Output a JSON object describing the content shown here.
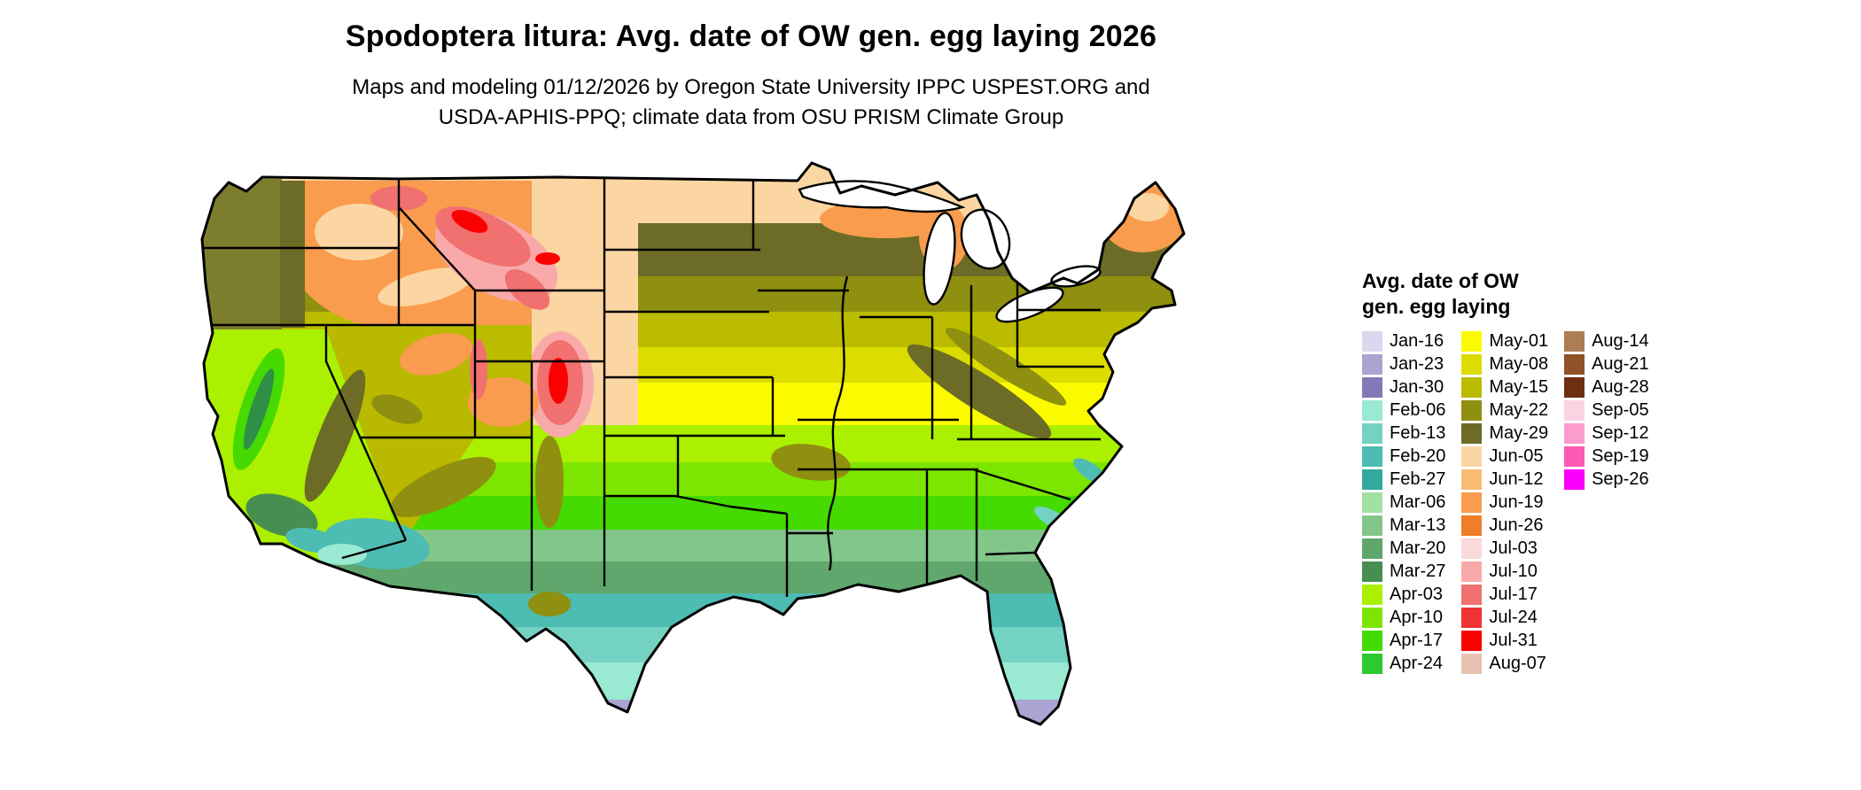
{
  "page": {
    "title": "Spodoptera litura: Avg. date of OW gen. egg laying 2026",
    "subtitle_line1": "Maps and modeling 01/12/2026 by Oregon State University IPPC USPEST.ORG and",
    "subtitle_line2": "USDA-APHIS-PPQ; climate data from OSU PRISM Climate Group"
  },
  "map": {
    "alt": "Choropleth map of the continental United States colored by average date of overwintered generation egg laying"
  },
  "legend": {
    "title_line1": "Avg. date of OW",
    "title_line2": "gen. egg laying",
    "columns": [
      {
        "items": [
          {
            "label": "Jan-16",
            "color": "#dcd6ee"
          },
          {
            "label": "Jan-23",
            "color": "#aba3d2"
          },
          {
            "label": "Jan-30",
            "color": "#8478b6"
          },
          {
            "label": "Feb-06",
            "color": "#9ae9d2"
          },
          {
            "label": "Feb-13",
            "color": "#74d2c2"
          },
          {
            "label": "Feb-20",
            "color": "#4dbcb2"
          },
          {
            "label": "Feb-27",
            "color": "#35a89e"
          },
          {
            "label": "Mar-06",
            "color": "#a2e0a4"
          },
          {
            "label": "Mar-13",
            "color": "#82c689"
          },
          {
            "label": "Mar-20",
            "color": "#5fa76d"
          },
          {
            "label": "Mar-27",
            "color": "#478e51"
          },
          {
            "label": "Apr-03",
            "color": "#aaf000"
          },
          {
            "label": "Apr-10",
            "color": "#7ce600"
          },
          {
            "label": "Apr-17",
            "color": "#45da00"
          },
          {
            "label": "Apr-24",
            "color": "#2dc930"
          }
        ]
      },
      {
        "items": [
          {
            "label": "May-01",
            "color": "#fbfb00"
          },
          {
            "label": "May-08",
            "color": "#dcdc00"
          },
          {
            "label": "May-15",
            "color": "#bbbb00"
          },
          {
            "label": "May-22",
            "color": "#8f8f10"
          },
          {
            "label": "May-29",
            "color": "#6c6c26"
          },
          {
            "label": "Jun-05",
            "color": "#fbd6a2"
          },
          {
            "label": "Jun-12",
            "color": "#fabb75"
          },
          {
            "label": "Jun-19",
            "color": "#f99c4e"
          },
          {
            "label": "Jun-26",
            "color": "#f07d28"
          },
          {
            "label": "Jul-03",
            "color": "#fadada"
          },
          {
            "label": "Jul-10",
            "color": "#f9a9a9"
          },
          {
            "label": "Jul-17",
            "color": "#f17070"
          },
          {
            "label": "Jul-24",
            "color": "#ee3434"
          },
          {
            "label": "Jul-31",
            "color": "#fb0000"
          },
          {
            "label": "Aug-07",
            "color": "#e7c2b2"
          }
        ]
      },
      {
        "items": [
          {
            "label": "Aug-14",
            "color": "#ad7d55"
          },
          {
            "label": "Aug-21",
            "color": "#8f5229"
          },
          {
            "label": "Aug-28",
            "color": "#6e2f10"
          },
          {
            "label": "Sep-05",
            "color": "#fbd3e3"
          },
          {
            "label": "Sep-12",
            "color": "#fb9cce"
          },
          {
            "label": "Sep-19",
            "color": "#fb5ab4"
          },
          {
            "label": "Sep-26",
            "color": "#fb00fb"
          }
        ]
      }
    ]
  }
}
